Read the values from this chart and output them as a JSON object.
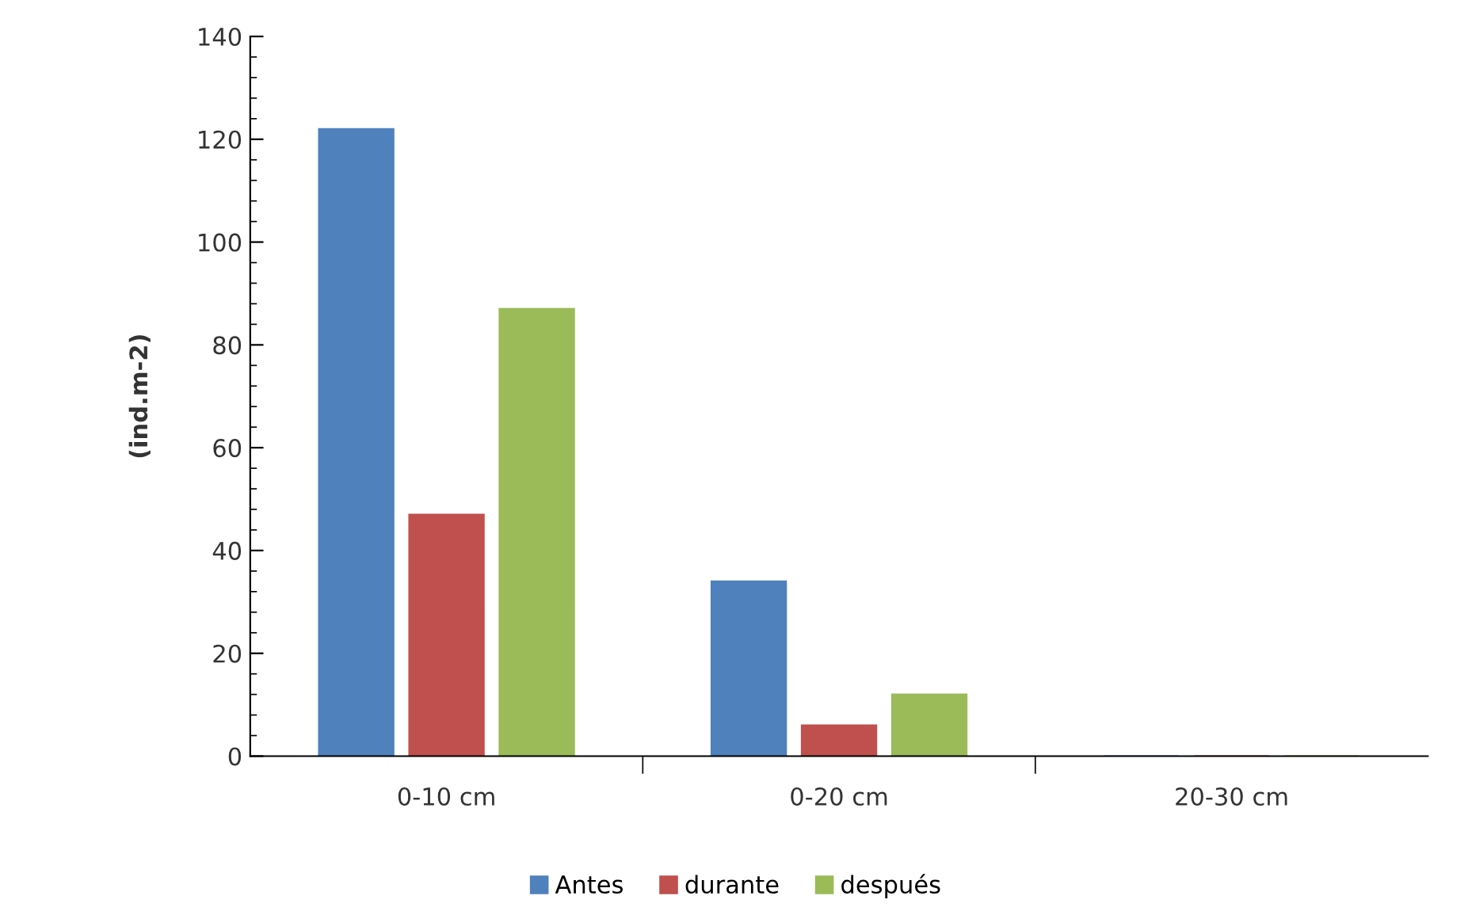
{
  "chart_data": {
    "type": "bar",
    "ylabel": "(ind.m-2)",
    "categories": [
      "0-10 cm",
      "0-20 cm",
      "20-30 cm"
    ],
    "series": [
      {
        "name": "Antes",
        "color": "#4f81bd",
        "values": [
          122,
          34,
          0
        ]
      },
      {
        "name": "durante",
        "color": "#c0504d",
        "values": [
          47,
          6,
          0
        ]
      },
      {
        "name": "después",
        "color": "#9bbb59",
        "values": [
          87,
          12,
          0
        ]
      }
    ],
    "ylim": [
      0,
      140
    ],
    "yticks": [
      0,
      20,
      40,
      60,
      80,
      100,
      120,
      140
    ],
    "grid": false,
    "legend": "bottom"
  }
}
